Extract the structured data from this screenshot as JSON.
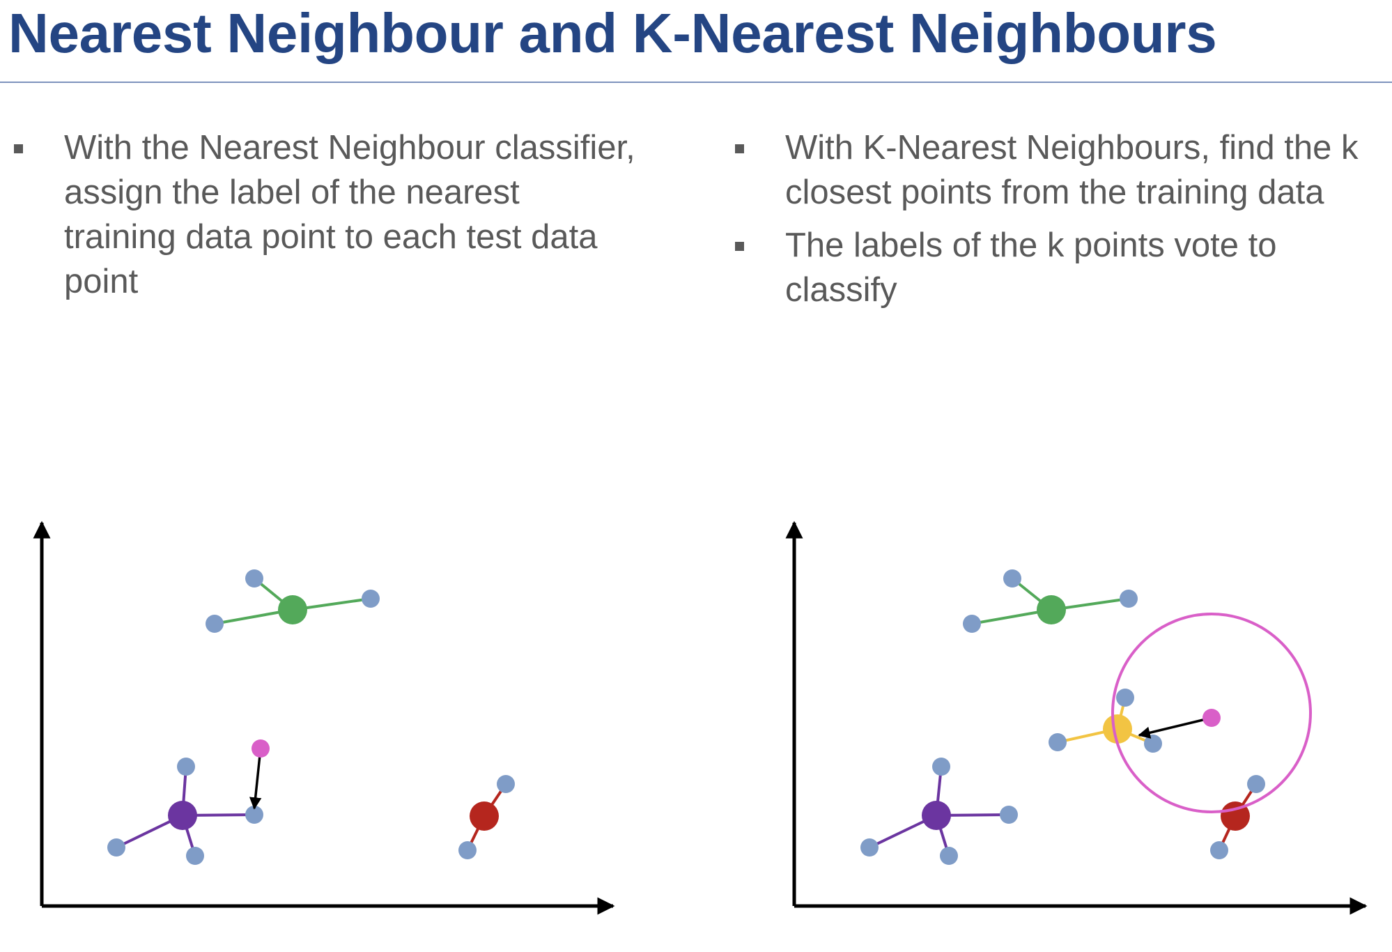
{
  "slide": {
    "title": "Nearest Neighbour and K-Nearest Neighbours"
  },
  "left_bullets": [
    "With the Nearest Neighbour classifier, assign the label of the nearest training data point to each test data point"
  ],
  "right_bullets": [
    "With K-Nearest Neighbours, find the k closest points from the training data",
    "The labels of the k points vote to classify"
  ],
  "colors": {
    "title": "#244583",
    "text": "#595959",
    "training_point": "#7f9cc7",
    "test_point": "#d95fc8",
    "green_class": "#53a95a",
    "purple_class": "#6b35a0",
    "red_class": "#b5261e",
    "yellow_class": "#f2c443",
    "axis": "#000000",
    "k_circle": "#d95fc8"
  },
  "left_diagram": {
    "classes": [
      {
        "name": "green-class",
        "color": "#53a95a",
        "center": [
          380,
          135
        ],
        "points": [
          [
            325,
            90
          ],
          [
            268,
            155
          ],
          [
            492,
            119
          ]
        ]
      },
      {
        "name": "purple-class",
        "color": "#6b35a0",
        "center": [
          222,
          430
        ],
        "points": [
          [
            227,
            360
          ],
          [
            127,
            476
          ],
          [
            240,
            488
          ],
          [
            325,
            429
          ]
        ]
      },
      {
        "name": "red-class",
        "color": "#b5261e",
        "center": [
          655,
          431
        ],
        "points": [
          [
            686,
            385
          ],
          [
            631,
            480
          ]
        ]
      }
    ],
    "test_point": [
      334,
      334
    ],
    "arrow_to": [
      325,
      420
    ]
  },
  "right_diagram": {
    "classes": [
      {
        "name": "green-class",
        "color": "#53a95a",
        "center": [
          389,
          135
        ],
        "points": [
          [
            333,
            90
          ],
          [
            275,
            155
          ],
          [
            500,
            119
          ]
        ]
      },
      {
        "name": "yellow-class",
        "color": "#f2c443",
        "center": [
          484,
          306
        ],
        "points": [
          [
            495,
            261
          ],
          [
            398,
            325
          ],
          [
            535,
            327
          ]
        ]
      },
      {
        "name": "purple-class",
        "color": "#6b35a0",
        "center": [
          224,
          430
        ],
        "points": [
          [
            231,
            360
          ],
          [
            128,
            476
          ],
          [
            242,
            488
          ],
          [
            328,
            429
          ]
        ]
      },
      {
        "name": "red-class",
        "color": "#b5261e",
        "center": [
          653,
          431
        ],
        "points": [
          [
            683,
            385
          ],
          [
            630,
            480
          ]
        ]
      }
    ],
    "test_point": [
      619,
      290
    ],
    "arrow_to": [
      515,
      315
    ],
    "circle": {
      "cx": 619,
      "cy": 283,
      "r": 142
    }
  }
}
